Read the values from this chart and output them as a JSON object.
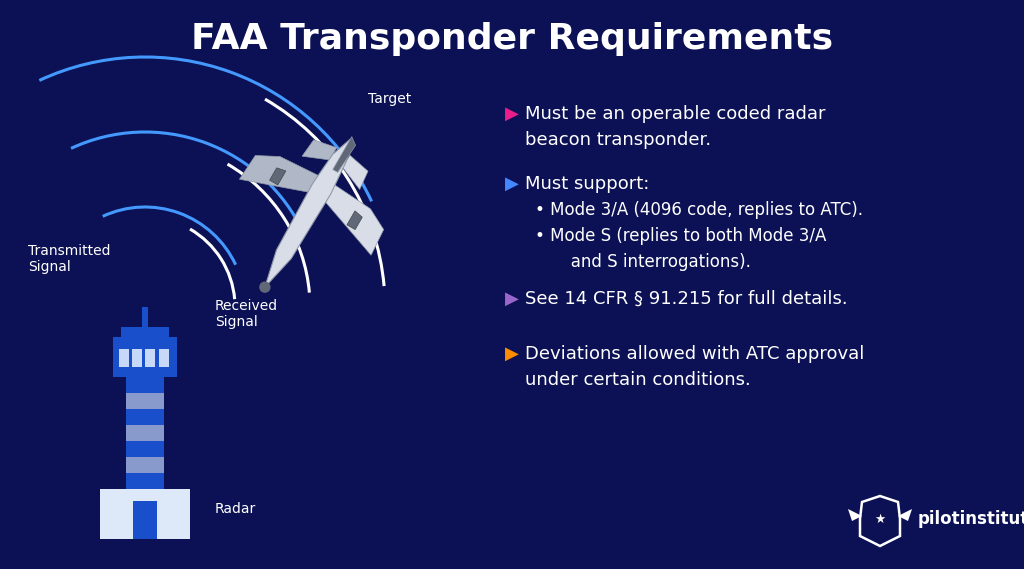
{
  "title": "FAA Transponder Requirements",
  "title_fontsize": 26,
  "title_color": "#ffffff",
  "bg_color": "#0b1154",
  "grid_color": "#1e2d7a",
  "text_color": "#ffffff",
  "label_target": "Target",
  "label_radar": "Radar",
  "label_transmitted": "Transmitted\nSignal",
  "label_received": "Received\nSignal",
  "label_color": "#ffffff",
  "label_fontsize": 10,
  "bullet1_color": "#e91e8c",
  "bullet1_line1": "Must be an operable coded radar",
  "bullet1_line2": "beacon transponder.",
  "bullet2_color": "#4488ff",
  "bullet2_line1": "Must support:",
  "bullet2_sub1": "• Mode 3/A (4096 code, replies to ATC).",
  "bullet2_sub2": "• Mode S (replies to both Mode 3/A",
  "bullet2_sub3": "   and S interrogations).",
  "bullet3_color": "#9966cc",
  "bullet3_line1": "See 14 CFR § 91.215 for full details.",
  "bullet4_color": "#ff8c00",
  "bullet4_line1": "Deviations allowed with ATC approval",
  "bullet4_line2": "under certain conditions.",
  "signal_color_blue": "#4499ff",
  "signal_color_white": "#ffffff",
  "tower_blue": "#1a4fcc",
  "tower_stripe": "#8899cc",
  "tower_white": "#dde8f8",
  "plane_body": "#d8dde8",
  "plane_shadow": "#b0b8c8",
  "plane_dark": "#606878",
  "text_fontsize": 13,
  "sub_fontsize": 12
}
